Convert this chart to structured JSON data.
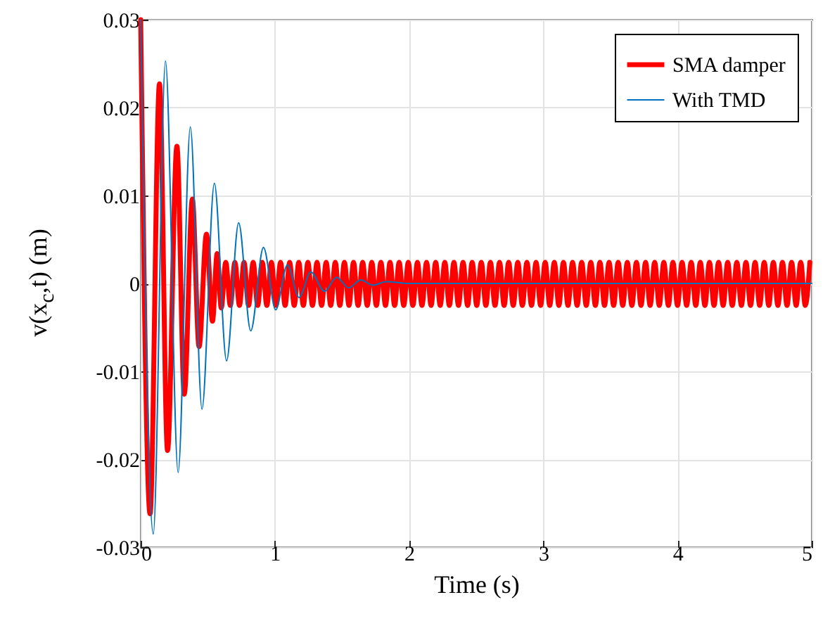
{
  "chart_data": {
    "type": "line",
    "xlabel": "Time (s)",
    "ylabel": "v(x$_{c}$,t) (m)",
    "xlim": [
      0,
      5
    ],
    "xticks": [
      0,
      1,
      2,
      3,
      4,
      5
    ],
    "ylim": [
      -0.03,
      0.03
    ],
    "yticks": [
      -0.03,
      -0.02,
      -0.01,
      0,
      0.01,
      0.02,
      0.03
    ],
    "grid": true,
    "legend": "top right",
    "marker": "none",
    "line_style": "solid",
    "series": [
      {
        "name": "SMA damper",
        "color": "#ff0000",
        "x": [
          0,
          0.07,
          0.14,
          0.2,
          0.27,
          0.325,
          0.385,
          0.435,
          0.49,
          0.535,
          0.57,
          0.6,
          0.634,
          0.668,
          0.702,
          0.736,
          0.77,
          0.804,
          0.838,
          0.872,
          0.906,
          0.94,
          0.974,
          1.008,
          1.042,
          1.076,
          1.11,
          1.144,
          1.178,
          1.212,
          1.246,
          1.28,
          1.314,
          1.348,
          1.382,
          1.416,
          1.45,
          1.484,
          1.518,
          1.552,
          1.586,
          1.62,
          1.654,
          1.688,
          1.722,
          1.756,
          1.79,
          1.824,
          1.858,
          1.892,
          1.926,
          1.96,
          1.994,
          2.028,
          2.062,
          2.096,
          2.13,
          2.164,
          2.198,
          2.232,
          2.266,
          2.3,
          2.334,
          2.368,
          2.402,
          2.436,
          2.47,
          2.504,
          2.538,
          2.572,
          2.606,
          2.64,
          2.674,
          2.708,
          2.742,
          2.776,
          2.81,
          2.844,
          2.878,
          2.912,
          2.946,
          2.98,
          3.014,
          3.048,
          3.082,
          3.116,
          3.15,
          3.184,
          3.218,
          3.252,
          3.286,
          3.32,
          3.354,
          3.388,
          3.422,
          3.456,
          3.49,
          3.524,
          3.558,
          3.592,
          3.626,
          3.66,
          3.694,
          3.728,
          3.762,
          3.796,
          3.83,
          3.864,
          3.898,
          3.932,
          3.966,
          4,
          4.034,
          4.068,
          4.102,
          4.136,
          4.17,
          4.204,
          4.238,
          4.272,
          4.306,
          4.34,
          4.374,
          4.408,
          4.442,
          4.476,
          4.51,
          4.544,
          4.578,
          4.612,
          4.646,
          4.68,
          4.714,
          4.748,
          4.782,
          4.816,
          4.85,
          4.884,
          4.918,
          4.952,
          4.986
        ],
        "values": [
          0.03,
          -0.0262,
          0.0227,
          -0.019,
          0.0156,
          -0.0126,
          0.0096,
          -0.0072,
          0.0056,
          -0.0043,
          0.0034,
          -0.0028,
          0.0024,
          -0.0025,
          0.0024,
          -0.0025,
          0.0024,
          -0.0025,
          0.0024,
          -0.0025,
          0.0024,
          -0.0025,
          0.0024,
          -0.0025,
          0.0024,
          -0.0025,
          0.0024,
          -0.0025,
          0.0024,
          -0.0025,
          0.0024,
          -0.0025,
          0.0024,
          -0.0025,
          0.0024,
          -0.0025,
          0.0024,
          -0.0025,
          0.0024,
          -0.0025,
          0.0024,
          -0.0025,
          0.0024,
          -0.0025,
          0.0024,
          -0.0025,
          0.0024,
          -0.0025,
          0.0024,
          -0.0025,
          0.0024,
          -0.0025,
          0.0024,
          -0.0025,
          0.0024,
          -0.0025,
          0.0024,
          -0.0025,
          0.0024,
          -0.0025,
          0.0024,
          -0.0025,
          0.0024,
          -0.0025,
          0.0024,
          -0.0025,
          0.0024,
          -0.0025,
          0.0024,
          -0.0025,
          0.0024,
          -0.0025,
          0.0024,
          -0.0025,
          0.0024,
          -0.0025,
          0.0024,
          -0.0025,
          0.0024,
          -0.0025,
          0.0024,
          -0.0025,
          0.0024,
          -0.0025,
          0.0024,
          -0.0025,
          0.0024,
          -0.0025,
          0.0024,
          -0.0025,
          0.0024,
          -0.0025,
          0.0024,
          -0.0025,
          0.0024,
          -0.0025,
          0.0024,
          -0.0025,
          0.0024,
          -0.0025,
          0.0024,
          -0.0025,
          0.0024,
          -0.0025,
          0.0024,
          -0.0025,
          0.0024,
          -0.0025,
          0.0024,
          -0.0025,
          0.0024,
          -0.0025,
          0.0024,
          -0.0025,
          0.0024,
          -0.0025,
          0.0024,
          -0.0025,
          0.0024,
          -0.0025,
          0.0024,
          -0.0025,
          0.0024,
          -0.0025,
          0.0024,
          -0.0025,
          0.0024,
          -0.0025,
          0.0024,
          -0.0025,
          0.0024,
          -0.0025,
          0.0024,
          -0.0025,
          0.0024,
          -0.0025,
          0.0024,
          -0.0025,
          0.0024,
          -0.0025,
          0.0024
        ]
      },
      {
        "name": "With TMD",
        "color": "#0072bd",
        "x": [
          0,
          0.094,
          0.185,
          0.279,
          0.37,
          0.457,
          0.549,
          0.64,
          0.73,
          0.82,
          0.915,
          1.006,
          1.093,
          1.18,
          1.268,
          1.37,
          1.46,
          1.55,
          1.64,
          1.73,
          1.83,
          2.0,
          5
        ],
        "values": [
          0.03,
          -0.0285,
          0.0253,
          -0.0215,
          0.0178,
          -0.0143,
          0.0114,
          -0.0088,
          0.0069,
          -0.0054,
          0.0041,
          -0.003,
          0.0021,
          -0.0016,
          0.0013,
          -0.0009,
          0.0007,
          -0.0005,
          0.0004,
          -0.0002,
          0.0002,
          0,
          0
        ]
      }
    ]
  }
}
